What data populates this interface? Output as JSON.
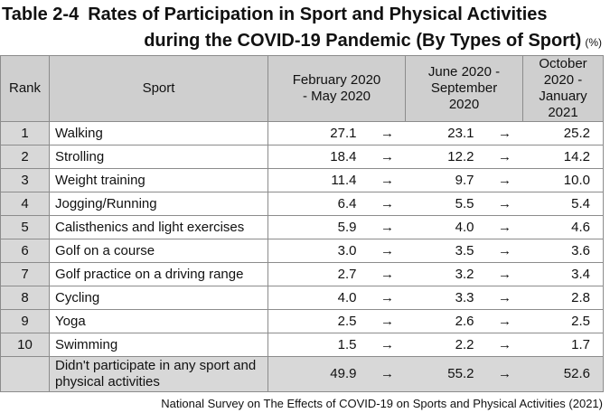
{
  "title": {
    "number": "Table 2-4",
    "line1": "Rates of Participation in Sport and Physical Activities",
    "line2": "during the COVID-19 Pandemic (By Types of Sport)",
    "unit": "(%)"
  },
  "table": {
    "headers": {
      "rank": "Rank",
      "sport": "Sport",
      "period1": "February 2020 - May 2020",
      "period2": "June 2020 - September 2020",
      "period3": "October 2020 - January 2021"
    },
    "arrow": "→",
    "rows": [
      {
        "rank": "1",
        "sport": "Walking",
        "v1": "27.1",
        "v2": "23.1",
        "v3": "25.2"
      },
      {
        "rank": "2",
        "sport": "Strolling",
        "v1": "18.4",
        "v2": "12.2",
        "v3": "14.2"
      },
      {
        "rank": "3",
        "sport": "Weight training",
        "v1": "11.4",
        "v2": "9.7",
        "v3": "10.0"
      },
      {
        "rank": "4",
        "sport": "Jogging/Running",
        "v1": "6.4",
        "v2": "5.5",
        "v3": "5.4"
      },
      {
        "rank": "5",
        "sport": "Calisthenics and light exercises",
        "v1": "5.9",
        "v2": "4.0",
        "v3": "4.6"
      },
      {
        "rank": "6",
        "sport": "Golf on a course",
        "v1": "3.0",
        "v2": "3.5",
        "v3": "3.6"
      },
      {
        "rank": "7",
        "sport": "Golf practice on a driving range",
        "v1": "2.7",
        "v2": "3.2",
        "v3": "3.4"
      },
      {
        "rank": "8",
        "sport": "Cycling",
        "v1": "4.0",
        "v2": "3.3",
        "v3": "2.8"
      },
      {
        "rank": "9",
        "sport": "Yoga",
        "v1": "2.5",
        "v2": "2.6",
        "v3": "2.5"
      },
      {
        "rank": "10",
        "sport": "Swimming",
        "v1": "1.5",
        "v2": "2.2",
        "v3": "1.7"
      }
    ],
    "summary": {
      "rank": "",
      "sport": "Didn't participate in any sport and physical activities",
      "v1": "49.9",
      "v2": "55.2",
      "v3": "52.6"
    }
  },
  "source": "National Survey on The Effects of COVID-19 on Sports and Physical Activities (2021)"
}
